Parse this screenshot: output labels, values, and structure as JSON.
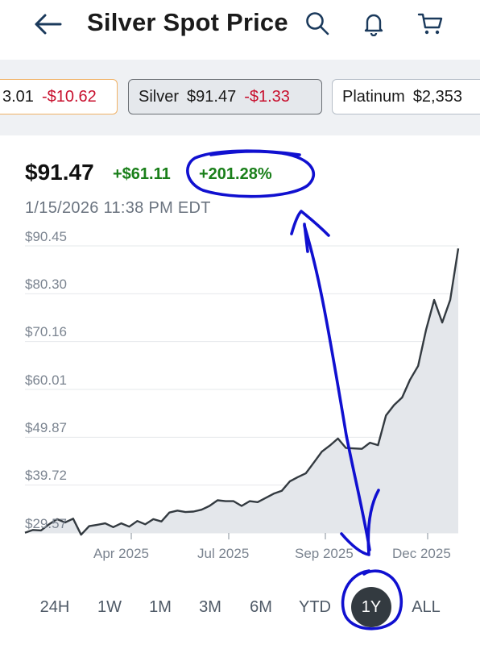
{
  "header": {
    "title": "Silver Spot Price"
  },
  "tickers": [
    {
      "name": "",
      "price": "3.01",
      "change": "-$10.62"
    },
    {
      "name": "Silver",
      "price": "$91.47",
      "change": "-$1.33"
    },
    {
      "name": "Platinum",
      "price": "$2,353",
      "change": ""
    }
  ],
  "quote": {
    "price": "$91.47",
    "change": "+$61.11",
    "percent": "+201.28%",
    "timestamp": "1/15/2026 11:38 PM EDT"
  },
  "chart_data": {
    "type": "area",
    "x_ticks": [
      "Apr 2025",
      "Jul 2025",
      "Sep 2025",
      "Dec 2025"
    ],
    "y_ticks": [
      "$90.45",
      "$80.30",
      "$70.16",
      "$60.01",
      "$49.87",
      "$39.72",
      "$29.57"
    ],
    "ylim": [
      29.57,
      90.45
    ],
    "values": [
      29.6,
      30.2,
      30.1,
      31.4,
      32.5,
      31.8,
      32.6,
      29.2,
      31.0,
      31.3,
      31.6,
      30.8,
      31.6,
      30.9,
      32.1,
      31.4,
      32.5,
      32.0,
      33.9,
      34.3,
      34.0,
      34.1,
      34.5,
      35.3,
      36.5,
      36.3,
      36.3,
      35.3,
      36.3,
      36.1,
      37.0,
      37.9,
      38.5,
      40.5,
      41.4,
      42.2,
      44.5,
      46.8,
      48.1,
      49.6,
      47.6,
      47.5,
      47.4,
      48.7,
      48.2,
      54.5,
      56.7,
      58.3,
      62.1,
      65.0,
      72.7,
      79.0,
      74.2,
      79.0,
      89.9
    ],
    "color_line": "#333a40",
    "color_fill": "#e4e7eb"
  },
  "ranges": {
    "items": [
      "24H",
      "1W",
      "1M",
      "3M",
      "6M",
      "YTD",
      "1Y",
      "ALL"
    ],
    "selected": "1Y"
  },
  "colors": {
    "positive": "#1a7f1a",
    "negative": "#c8102e",
    "annotation": "#1010d0"
  }
}
